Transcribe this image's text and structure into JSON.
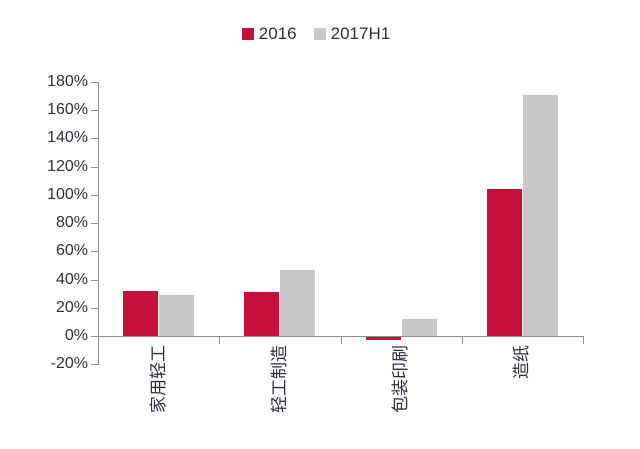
{
  "chart_data": {
    "type": "bar",
    "title": "",
    "categories": [
      "家用轻工",
      "轻工制造",
      "包装印刷",
      "造纸"
    ],
    "series": [
      {
        "name": "2016",
        "color": "#c8103c",
        "values": [
          32,
          31,
          -2,
          104
        ]
      },
      {
        "name": "2017H1",
        "color": "#c8c8c8",
        "values": [
          29,
          47,
          12,
          171
        ]
      }
    ],
    "y_axis": {
      "min": -20,
      "max": 180,
      "step": 20,
      "tick_labels": [
        "180%",
        "160%",
        "140%",
        "120%",
        "100%",
        "80%",
        "60%",
        "40%",
        "20%",
        "0%",
        "-20%"
      ],
      "format": "percent"
    },
    "grid": false,
    "legend_position": "top",
    "colors": {
      "axis": "#8e8e8e",
      "text": "#2e2e3e",
      "background": "#ffffff"
    }
  }
}
